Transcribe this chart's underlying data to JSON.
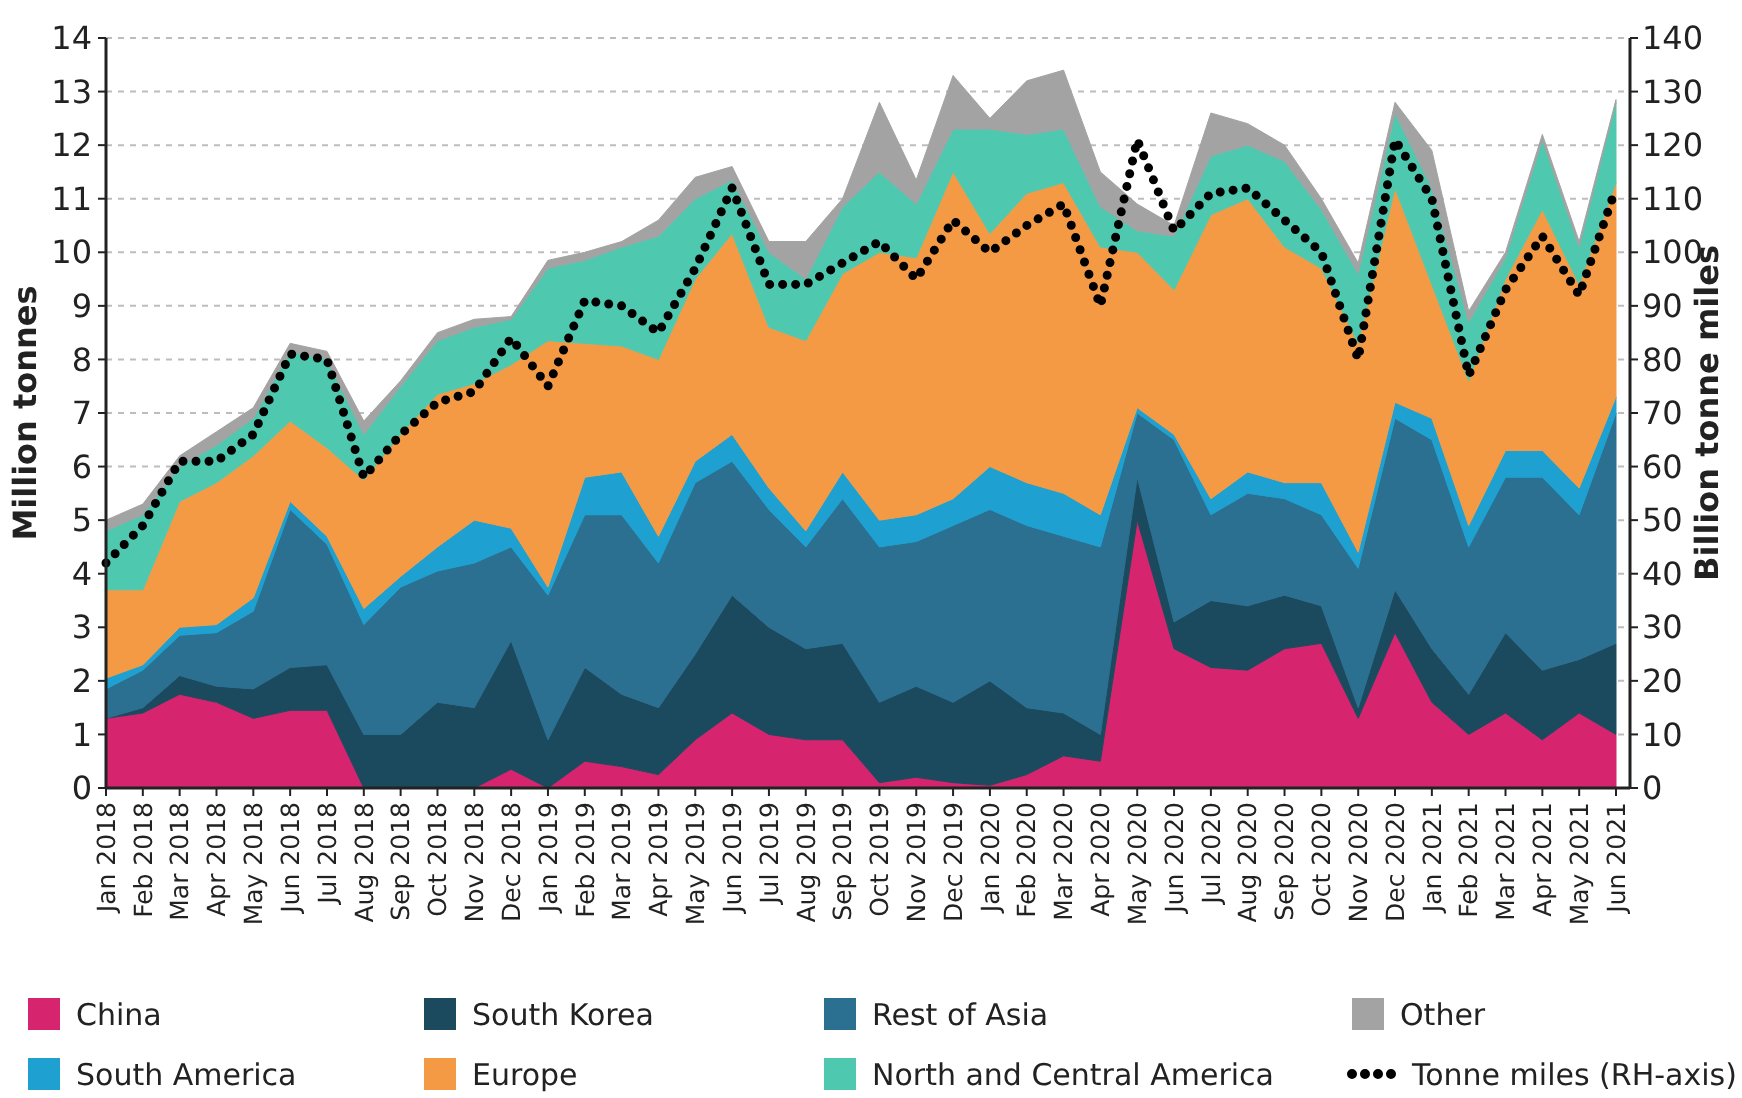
{
  "chart_data": {
    "type": "area",
    "stacked": true,
    "ylabel": "Million tonnes",
    "y2label": "Billion tonne miles",
    "categories": [
      "Jan 2018",
      "Feb 2018",
      "Mar 2018",
      "Apr 2018",
      "May 2018",
      "Jun 2018",
      "Jul 2018",
      "Aug 2018",
      "Sep 2018",
      "Oct 2018",
      "Nov 2018",
      "Dec 2018",
      "Jan 2019",
      "Feb 2019",
      "Mar 2019",
      "Apr 2019",
      "May 2019",
      "Jun 2019",
      "Jul 2019",
      "Aug 2019",
      "Sep 2019",
      "Oct 2019",
      "Nov 2019",
      "Dec 2019",
      "Jan 2020",
      "Feb 2020",
      "Mar 2020",
      "Apr 2020",
      "May 2020",
      "Jun 2020",
      "Jul 2020",
      "Aug 2020",
      "Sep 2020",
      "Oct 2020",
      "Nov 2020",
      "Dec 2020",
      "Jan 2021",
      "Feb 2021",
      "Mar 2021",
      "Apr 2021",
      "May 2021",
      "Jun 2021"
    ],
    "series": [
      {
        "name": "China",
        "color": "#d6246e",
        "values": [
          1.3,
          1.4,
          1.75,
          1.6,
          1.3,
          1.45,
          1.45,
          0,
          0,
          0,
          0,
          0.35,
          0,
          0.5,
          0.4,
          0.25,
          0.9,
          1.4,
          1.0,
          0.9,
          0.9,
          0.1,
          0.2,
          0.1,
          0.05,
          0.25,
          0.6,
          0.5,
          5.0,
          2.6,
          2.25,
          2.2,
          2.6,
          2.7,
          1.3,
          2.9,
          1.6,
          1.0,
          1.4,
          0.9,
          1.4,
          1.0
        ]
      },
      {
        "name": "South Korea",
        "color": "#1b4a5e",
        "values": [
          0,
          0.1,
          0.35,
          0.3,
          0.55,
          0.8,
          0.85,
          1.0,
          1.0,
          1.6,
          1.5,
          2.4,
          0.9,
          1.75,
          1.35,
          1.25,
          1.6,
          2.2,
          2.0,
          1.7,
          1.8,
          1.5,
          1.7,
          1.5,
          1.95,
          1.25,
          0.8,
          0.5,
          0.8,
          0.5,
          1.25,
          1.2,
          1.0,
          0.7,
          0.2,
          0.8,
          1.0,
          0.75,
          1.5,
          1.3,
          1.0,
          1.7
        ]
      },
      {
        "name": "Rest of Asia",
        "color": "#2b6f91",
        "values": [
          0.55,
          0.7,
          0.75,
          1.0,
          1.45,
          2.95,
          2.25,
          2.05,
          2.75,
          2.45,
          2.7,
          1.75,
          2.7,
          2.85,
          3.35,
          2.7,
          3.2,
          2.5,
          2.2,
          1.9,
          2.7,
          2.9,
          2.7,
          3.3,
          3.2,
          3.4,
          3.3,
          3.5,
          1.2,
          3.4,
          1.6,
          2.1,
          1.8,
          1.7,
          2.6,
          3.2,
          3.9,
          2.75,
          2.9,
          3.6,
          2.7,
          4.3
        ]
      },
      {
        "name": "South America",
        "color": "#1ea0d0",
        "values": [
          0.2,
          0.1,
          0.15,
          0.15,
          0.25,
          0.15,
          0.15,
          0.3,
          0.2,
          0.45,
          0.8,
          0.35,
          0.15,
          0.7,
          0.8,
          0.5,
          0.4,
          0.5,
          0.4,
          0.3,
          0.5,
          0.5,
          0.5,
          0.5,
          0.8,
          0.8,
          0.8,
          0.6,
          0.1,
          0.1,
          0.3,
          0.4,
          0.3,
          0.6,
          0.3,
          0.3,
          0.4,
          0.4,
          0.5,
          0.5,
          0.5,
          0.3
        ]
      },
      {
        "name": "Europe",
        "color": "#f59a44",
        "values": [
          1.65,
          1.4,
          2.35,
          2.65,
          2.65,
          1.5,
          1.65,
          2.4,
          2.65,
          2.85,
          2.55,
          3.05,
          4.6,
          2.5,
          2.35,
          3.3,
          3.4,
          3.75,
          3.0,
          3.55,
          3.7,
          5.0,
          4.8,
          6.1,
          4.35,
          5.4,
          5.8,
          5.0,
          2.9,
          2.7,
          5.3,
          5.1,
          4.4,
          4.0,
          3.9,
          4.0,
          2.5,
          2.7,
          3.2,
          4.5,
          3.8,
          4.0
        ]
      },
      {
        "name": "North and Central America",
        "color": "#4ec9b0",
        "values": [
          1.1,
          1.4,
          0.65,
          0.7,
          0.7,
          1.3,
          1.65,
          0.85,
          0.9,
          1.0,
          1.05,
          0.85,
          1.35,
          1.55,
          1.85,
          2.3,
          1.5,
          1.0,
          1.4,
          1.15,
          1.25,
          1.5,
          1.0,
          0.8,
          1.95,
          1.1,
          1.0,
          0.75,
          0.4,
          1.0,
          1.1,
          1.0,
          1.6,
          1.1,
          1.3,
          1.4,
          1.8,
          1.1,
          0.4,
          1.3,
          0.7,
          1.5
        ]
      },
      {
        "name": "Other",
        "color": "#a3a3a3",
        "values": [
          0.2,
          0.2,
          0.2,
          0.25,
          0.2,
          0.15,
          0.15,
          0.25,
          0.1,
          0.15,
          0.15,
          0.05,
          0.15,
          0.15,
          0.1,
          0.3,
          0.4,
          0.25,
          0.2,
          0.7,
          0.15,
          1.3,
          0.45,
          1.0,
          0.2,
          1.0,
          1.1,
          0.65,
          0.5,
          0.2,
          0.8,
          0.4,
          0.3,
          0.2,
          0.2,
          0.2,
          0.7,
          0.2,
          0.1,
          0.1,
          0.1,
          0.05
        ]
      },
      {
        "name": "Tonne miles (RH-axis)",
        "type": "line",
        "axis": "y2",
        "color": "#000000",
        "line_style": "dotted",
        "values": [
          42,
          49,
          61,
          61,
          66,
          81,
          80,
          58,
          66,
          72,
          74,
          84,
          75,
          91,
          90,
          85,
          97,
          112,
          94,
          94,
          98,
          102,
          95,
          106,
          100,
          105,
          109,
          90,
          121,
          104,
          111,
          112,
          106,
          100,
          80,
          121,
          110,
          77,
          93,
          103,
          92,
          112
        ]
      }
    ],
    "ylim": [
      0,
      14
    ],
    "yticks": [
      0,
      1,
      2,
      3,
      4,
      5,
      6,
      7,
      8,
      9,
      10,
      11,
      12,
      13,
      14
    ],
    "y2lim": [
      0,
      140
    ],
    "y2ticks": [
      0,
      10,
      20,
      30,
      40,
      50,
      60,
      70,
      80,
      90,
      100,
      110,
      120,
      130,
      140
    ],
    "grid": "y",
    "legend": "bottom"
  }
}
